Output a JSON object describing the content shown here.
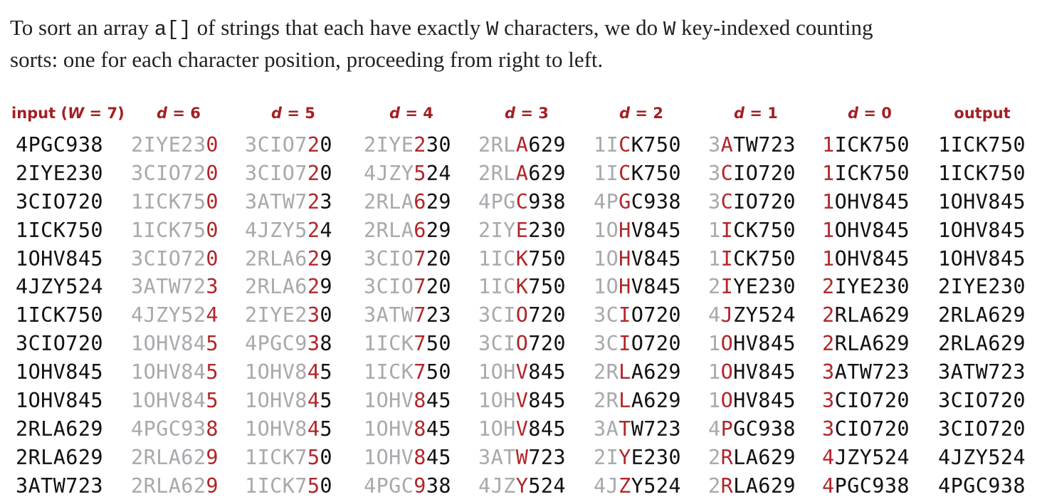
{
  "intro": {
    "line1_pre": "To sort an array ",
    "line1_code1": "a[]",
    "line1_mid": " of strings that each have exactly ",
    "line1_code2": "W",
    "line1_mid2": " characters, we do ",
    "line1_code3": "W",
    "line1_post": " key-indexed counting",
    "line2": "sorts: one for each character position, proceeding from right to left."
  },
  "colors": {
    "heading": "#a31f22",
    "highlight": "#b0262a",
    "faded": "#a7a9ac",
    "normal": "#111111"
  },
  "headers": {
    "input_prefix": "input (",
    "input_var": "W",
    "input_suffix": " = 7)",
    "d_var": "d",
    "d_labels": [
      " = 6",
      " = 5",
      " = 4",
      " = 3",
      " = 2",
      " = 1",
      " = 0"
    ],
    "output": "output"
  },
  "columns": [
    {
      "key": "input",
      "pos": null,
      "rows": [
        "4PGC938",
        "2IYE230",
        "3CIO720",
        "1ICK750",
        "1OHV845",
        "4JZY524",
        "1ICK750",
        "3CIO720",
        "1OHV845",
        "1OHV845",
        "2RLA629",
        "2RLA629",
        "3ATW723"
      ]
    },
    {
      "key": "d6",
      "pos": 6,
      "rows": [
        "2IYE230",
        "3CIO720",
        "1ICK750",
        "1ICK750",
        "3CIO720",
        "3ATW723",
        "4JZY524",
        "1OHV845",
        "1OHV845",
        "1OHV845",
        "4PGC938",
        "2RLA629",
        "2RLA629"
      ]
    },
    {
      "key": "d5",
      "pos": 5,
      "rows": [
        "3CIO720",
        "3CIO720",
        "3ATW723",
        "4JZY524",
        "2RLA629",
        "2RLA629",
        "2IYE230",
        "4PGC938",
        "1OHV845",
        "1OHV845",
        "1OHV845",
        "1ICK750",
        "1ICK750"
      ]
    },
    {
      "key": "d4",
      "pos": 4,
      "rows": [
        "2IYE230",
        "4JZY524",
        "2RLA629",
        "2RLA629",
        "3CIO720",
        "3CIO720",
        "3ATW723",
        "1ICK750",
        "1ICK750",
        "1OHV845",
        "1OHV845",
        "1OHV845",
        "4PGC938"
      ]
    },
    {
      "key": "d3",
      "pos": 3,
      "rows": [
        "2RLA629",
        "2RLA629",
        "4PGC938",
        "2IYE230",
        "1ICK750",
        "1ICK750",
        "3CIO720",
        "3CIO720",
        "1OHV845",
        "1OHV845",
        "1OHV845",
        "3ATW723",
        "4JZY524"
      ]
    },
    {
      "key": "d2",
      "pos": 2,
      "rows": [
        "1ICK750",
        "1ICK750",
        "4PGC938",
        "1OHV845",
        "1OHV845",
        "1OHV845",
        "3CIO720",
        "3CIO720",
        "2RLA629",
        "2RLA629",
        "3ATW723",
        "2IYE230",
        "4JZY524"
      ]
    },
    {
      "key": "d1",
      "pos": 1,
      "rows": [
        "3ATW723",
        "3CIO720",
        "3CIO720",
        "1ICK750",
        "1ICK750",
        "2IYE230",
        "4JZY524",
        "1OHV845",
        "1OHV845",
        "1OHV845",
        "4PGC938",
        "2RLA629",
        "2RLA629"
      ]
    },
    {
      "key": "d0",
      "pos": 0,
      "rows": [
        "1ICK750",
        "1ICK750",
        "1OHV845",
        "1OHV845",
        "1OHV845",
        "2IYE230",
        "2RLA629",
        "2RLA629",
        "3ATW723",
        "3CIO720",
        "3CIO720",
        "4JZY524",
        "4PGC938"
      ]
    },
    {
      "key": "output",
      "pos": null,
      "rows": [
        "1ICK750",
        "1ICK750",
        "1OHV845",
        "1OHV845",
        "1OHV845",
        "2IYE230",
        "2RLA629",
        "2RLA629",
        "3ATW723",
        "3CIO720",
        "3CIO720",
        "4JZY524",
        "4PGC938"
      ]
    }
  ]
}
